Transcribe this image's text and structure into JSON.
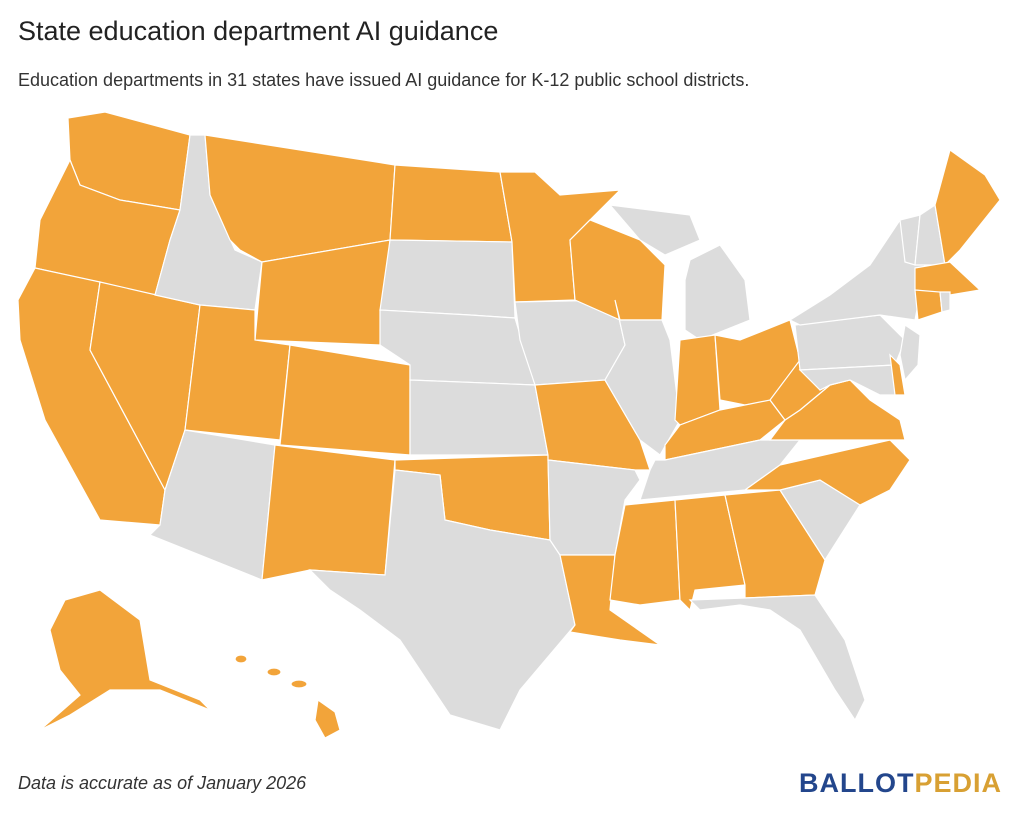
{
  "header": {
    "title": "State education department AI guidance",
    "subtitle": "Education departments in 31 states have issued AI guidance for K-12 public school districts."
  },
  "footer": {
    "note": "Data is accurate as of January 2026",
    "logo": [
      "BALLOT",
      "PEDIA"
    ]
  }
}
